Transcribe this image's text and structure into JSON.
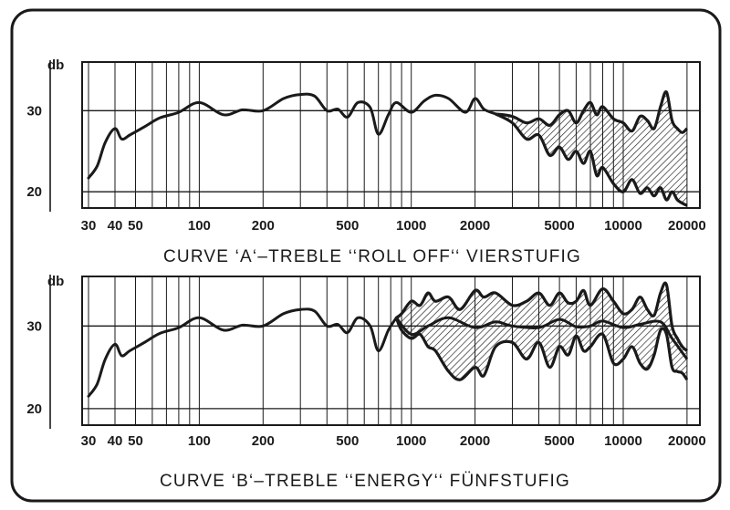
{
  "chart_data": [
    {
      "type": "line",
      "caption": "CURVE ‘A‘–TREBLE ‘‘ROLL OFF‘‘ VIERSTUFIG",
      "ylabel": "db",
      "x_scale": "log",
      "xlim": [
        28,
        23000
      ],
      "ylim": [
        18,
        36
      ],
      "x_ticks": [
        "30",
        "40",
        "50",
        "100",
        "200",
        "500",
        "1000",
        "2000",
        "5000",
        "10000",
        "20000"
      ],
      "y_ticks": [
        "30",
        "20"
      ],
      "main_curve": {
        "x": [
          30,
          33,
          36,
          40,
          43,
          47,
          55,
          65,
          80,
          100,
          130,
          160,
          200,
          250,
          300,
          350,
          400,
          450,
          500,
          560,
          640,
          700,
          780,
          850,
          1000,
          1150,
          1300,
          1500,
          1800,
          2000,
          2200,
          2500
        ],
        "y": [
          21.7,
          23.2,
          26.1,
          27.8,
          26.5,
          27.0,
          28.0,
          29.1,
          29.8,
          31.0,
          29.5,
          30.1,
          30.0,
          31.5,
          32.0,
          31.8,
          30.0,
          30.2,
          29.2,
          31.0,
          30.4,
          27.1,
          29.5,
          31.0,
          29.8,
          31.2,
          31.9,
          31.5,
          29.8,
          31.5,
          30.2,
          29.6
        ]
      },
      "band": {
        "x": [
          2500,
          3000,
          3500,
          4000,
          4500,
          5000,
          5500,
          6000,
          6500,
          7000,
          7500,
          8000,
          9000,
          10000,
          11000,
          12000,
          13000,
          14000,
          15000,
          16000,
          17000,
          18000,
          19000,
          20000
        ],
        "upper": [
          29.6,
          29.3,
          28.5,
          29.0,
          28.2,
          29.5,
          30.0,
          28.5,
          30.0,
          31.0,
          29.5,
          30.5,
          29.0,
          28.5,
          27.5,
          29.3,
          28.8,
          27.8,
          30.5,
          32.3,
          28.8,
          27.8,
          27.3,
          27.8
        ],
        "lower": [
          29.6,
          28.5,
          26.5,
          27.0,
          24.5,
          25.5,
          24.0,
          25.0,
          23.5,
          25.0,
          22.0,
          23.0,
          21.0,
          20.0,
          21.5,
          19.8,
          20.5,
          19.5,
          20.5,
          19.0,
          20.0,
          19.0,
          18.6,
          18.3
        ]
      }
    },
    {
      "type": "line",
      "caption": "CURVE ‘B‘–TREBLE ‘‘ENERGY‘‘ FÜNFSTUFIG",
      "ylabel": "db",
      "x_scale": "log",
      "xlim": [
        28,
        23000
      ],
      "ylim": [
        18,
        36
      ],
      "x_ticks": [
        "30",
        "40",
        "50",
        "100",
        "200",
        "500",
        "1000",
        "2000",
        "5000",
        "10000",
        "20000"
      ],
      "y_ticks": [
        "30",
        "20"
      ],
      "main_curve": {
        "x": [
          30,
          33,
          36,
          40,
          43,
          47,
          55,
          65,
          80,
          100,
          130,
          160,
          200,
          250,
          300,
          350,
          400,
          450,
          500,
          560,
          640,
          700,
          780,
          850
        ],
        "y": [
          21.5,
          23.0,
          26.0,
          27.8,
          26.4,
          27.0,
          28.0,
          29.1,
          29.8,
          31.0,
          29.5,
          30.1,
          30.0,
          31.5,
          32.0,
          31.8,
          30.0,
          30.2,
          29.2,
          31.0,
          30.0,
          27.0,
          29.5,
          31.0
        ]
      },
      "center_curve": {
        "x": [
          850,
          1000,
          1200,
          1500,
          2000,
          2500,
          3000,
          4000,
          5000,
          6000,
          7000,
          8000,
          10000,
          12000,
          15000,
          17000,
          20000
        ],
        "y": [
          31.0,
          29.0,
          30.0,
          31.0,
          29.8,
          30.5,
          30.0,
          29.8,
          30.8,
          29.9,
          30.0,
          30.6,
          29.8,
          30.2,
          30.5,
          28.5,
          26.0
        ]
      },
      "band": {
        "x": [
          850,
          900,
          1000,
          1100,
          1200,
          1300,
          1500,
          1700,
          2000,
          2200,
          2500,
          3000,
          3500,
          4000,
          4500,
          5000,
          5500,
          6000,
          6500,
          7000,
          8000,
          9000,
          10000,
          11000,
          12000,
          13000,
          14000,
          15000,
          16000,
          17000,
          18000,
          19000,
          20000
        ],
        "upper": [
          31.0,
          31.5,
          33.0,
          32.5,
          34.0,
          33.0,
          33.5,
          32.0,
          34.3,
          33.5,
          34.0,
          32.5,
          33.0,
          34.0,
          32.5,
          34.0,
          32.8,
          33.0,
          34.3,
          32.5,
          34.5,
          33.0,
          31.5,
          32.0,
          33.5,
          32.0,
          31.3,
          34.0,
          35.0,
          30.0,
          28.5,
          27.5,
          27.0
        ],
        "lower": [
          31.0,
          29.5,
          28.5,
          29.0,
          27.5,
          27.0,
          24.5,
          23.5,
          25.0,
          24.0,
          27.5,
          28.0,
          26.0,
          28.0,
          25.0,
          27.5,
          26.5,
          28.8,
          27.0,
          27.5,
          29.0,
          25.5,
          26.0,
          27.5,
          25.5,
          24.8,
          26.5,
          29.5,
          29.0,
          25.0,
          24.5,
          24.3,
          23.5
        ]
      }
    }
  ]
}
